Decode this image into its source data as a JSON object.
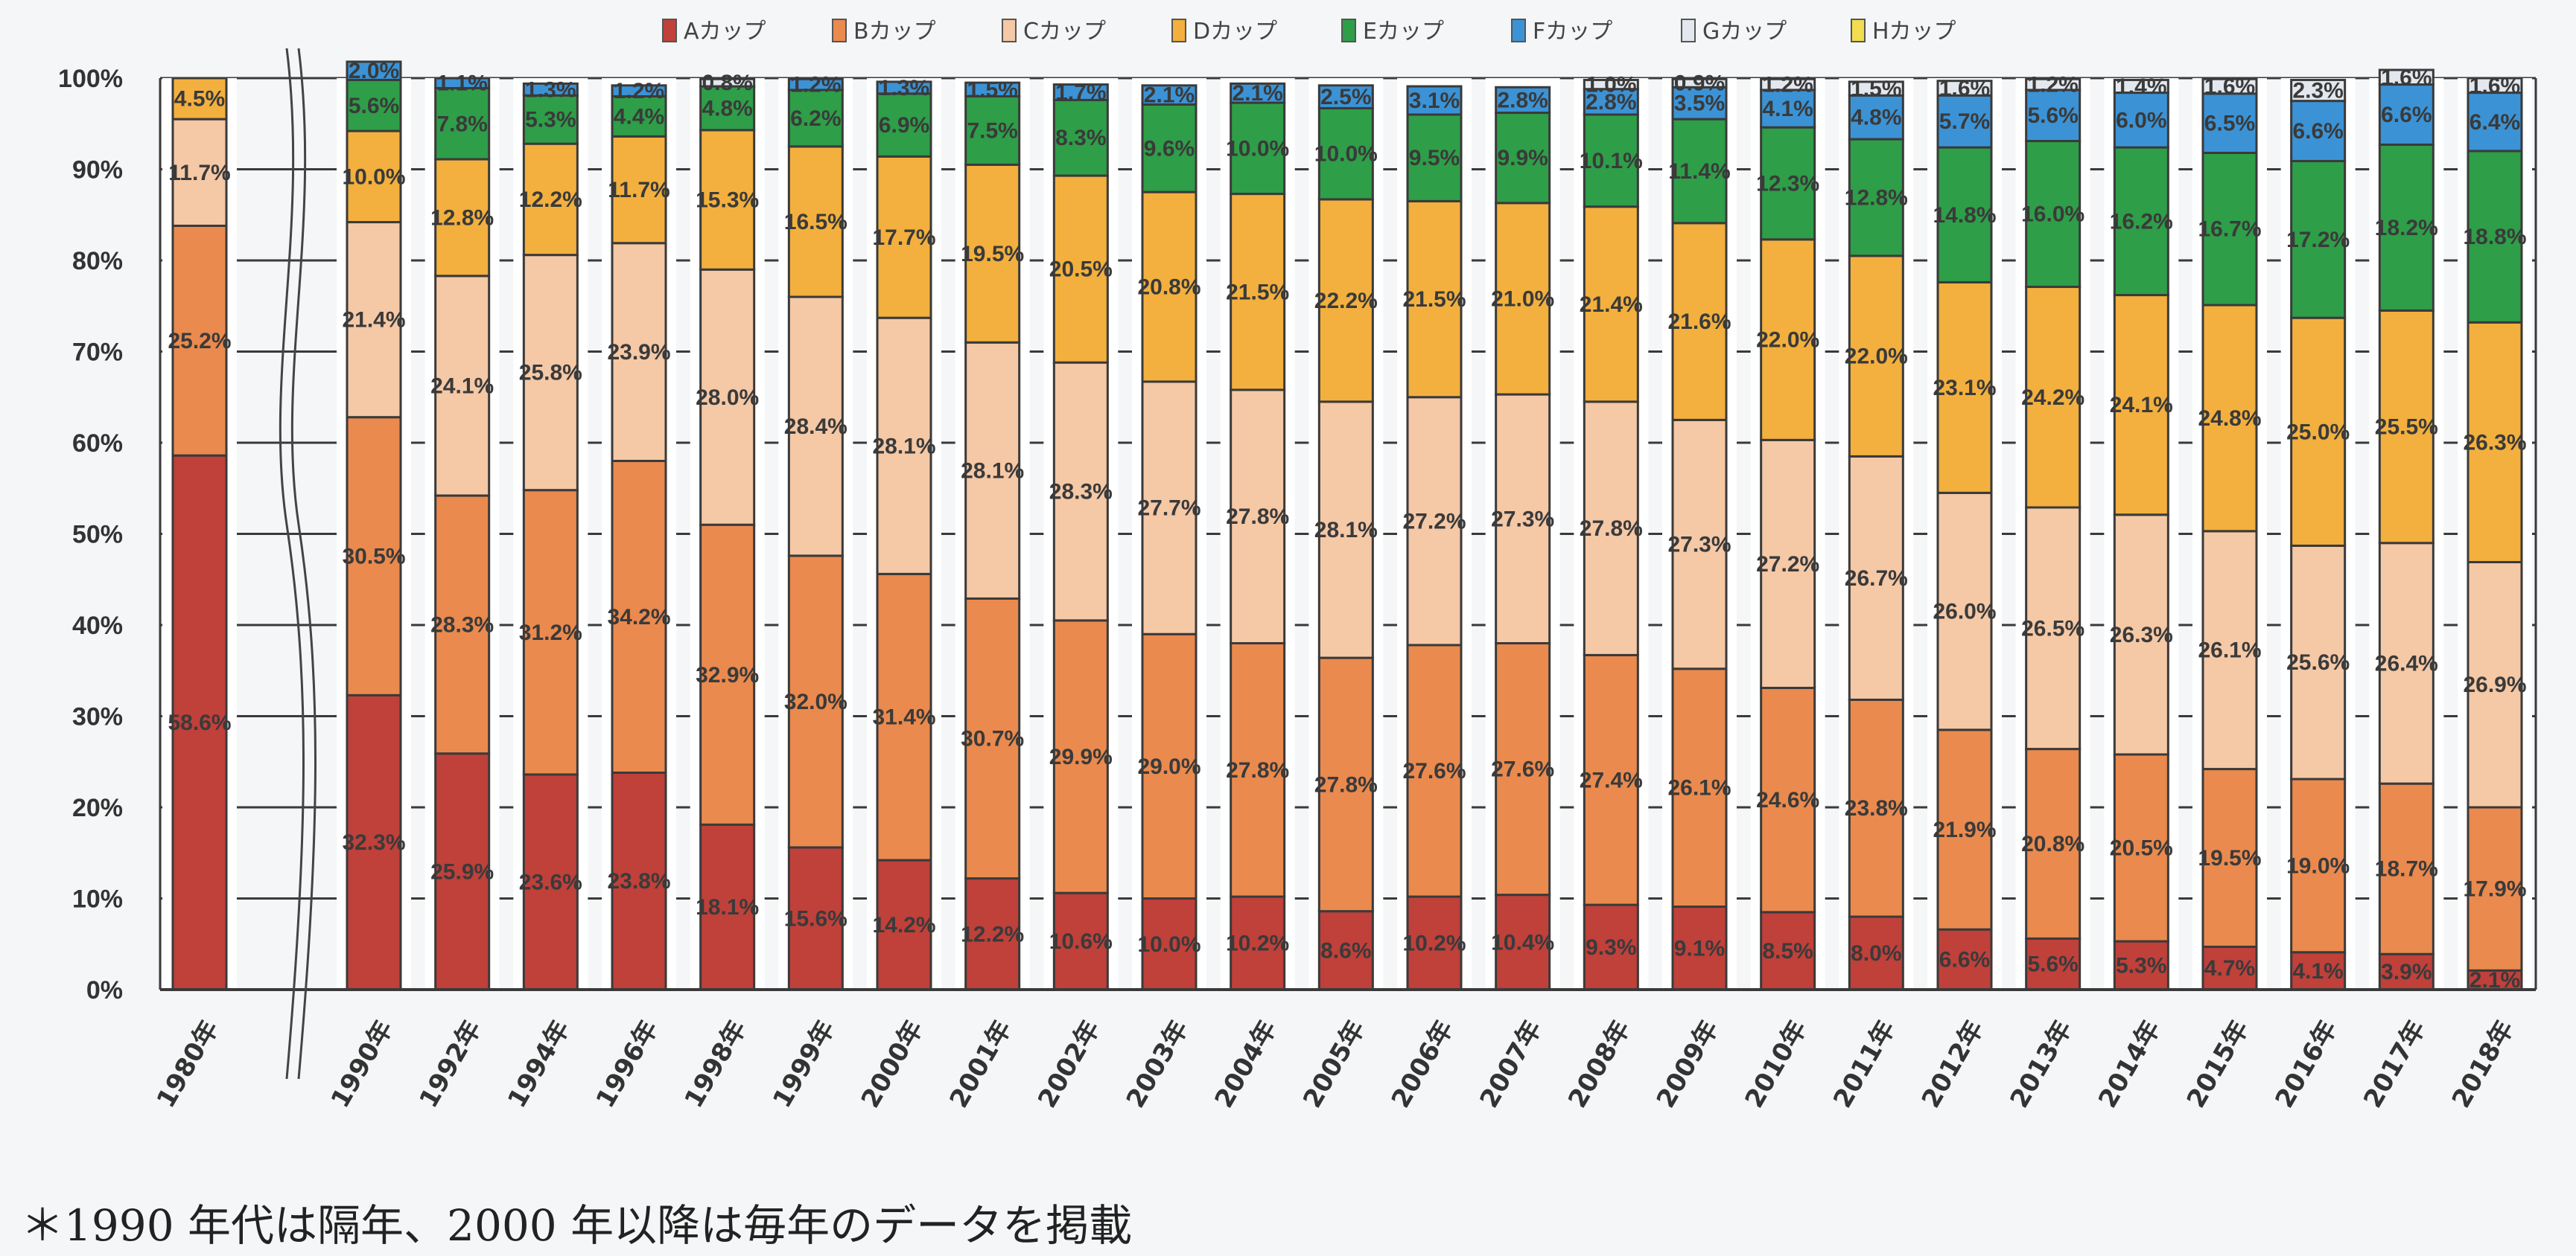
{
  "chart_data": {
    "type": "bar",
    "stacked": true,
    "percent": true,
    "title": "",
    "xlabel": "",
    "ylabel": "",
    "ylim": [
      0,
      100
    ],
    "yticks": [
      "0%",
      "10%",
      "20%",
      "30%",
      "40%",
      "50%",
      "60%",
      "70%",
      "80%",
      "90%",
      "100%"
    ],
    "grid": true,
    "legend_position": "top",
    "axis_break_after": "1980年",
    "categories": [
      "1980年",
      "1990年",
      "1992年",
      "1994年",
      "1996年",
      "1998年",
      "1999年",
      "2000年",
      "2001年",
      "2002年",
      "2003年",
      "2004年",
      "2005年",
      "2006年",
      "2007年",
      "2008年",
      "2009年",
      "2010年",
      "2011年",
      "2012年",
      "2013年",
      "2014年",
      "2015年",
      "2016年",
      "2017年",
      "2018年"
    ],
    "series": [
      {
        "name": "Aカップ",
        "color": "#c0403a",
        "values": [
          58.6,
          32.3,
          25.9,
          23.6,
          23.8,
          18.1,
          15.6,
          14.2,
          12.2,
          10.6,
          10.0,
          10.2,
          8.6,
          10.2,
          10.4,
          9.3,
          9.1,
          8.5,
          8.0,
          6.6,
          5.6,
          5.3,
          4.7,
          4.1,
          3.9,
          2.1
        ]
      },
      {
        "name": "Bカップ",
        "color": "#ea8a4e",
        "values": [
          25.2,
          30.5,
          28.3,
          31.2,
          34.2,
          32.9,
          32.0,
          31.4,
          30.7,
          29.9,
          29.0,
          27.8,
          27.8,
          27.6,
          27.6,
          27.4,
          26.1,
          24.6,
          23.8,
          21.9,
          20.8,
          20.5,
          19.5,
          19.0,
          18.7,
          17.9
        ]
      },
      {
        "name": "Cカップ",
        "color": "#f5c8a6",
        "values": [
          11.7,
          21.4,
          24.1,
          25.8,
          23.9,
          28.0,
          28.4,
          28.1,
          28.1,
          28.3,
          27.7,
          27.8,
          28.1,
          27.2,
          27.3,
          27.8,
          27.3,
          27.2,
          26.7,
          26.0,
          26.5,
          26.3,
          26.1,
          25.6,
          26.4,
          26.9
        ]
      },
      {
        "name": "Dカップ",
        "color": "#f3b03e",
        "values": [
          4.5,
          10.0,
          12.8,
          12.2,
          11.7,
          15.3,
          16.5,
          17.7,
          19.5,
          20.5,
          20.8,
          21.5,
          22.2,
          21.5,
          21.0,
          21.4,
          21.6,
          22.0,
          22.0,
          23.1,
          24.2,
          24.1,
          24.8,
          25.0,
          25.5,
          26.3
        ]
      },
      {
        "name": "Eカップ",
        "color": "#2e9e48",
        "values": [
          0,
          5.6,
          7.8,
          5.3,
          4.4,
          4.8,
          6.2,
          6.9,
          7.5,
          8.3,
          9.6,
          10.0,
          10.0,
          9.5,
          9.9,
          10.1,
          11.4,
          12.3,
          12.8,
          14.8,
          16.0,
          16.2,
          16.7,
          17.2,
          18.2,
          18.8
        ]
      },
      {
        "name": "Fカップ",
        "color": "#3b93d6",
        "values": [
          0,
          2.0,
          1.1,
          1.3,
          1.2,
          0,
          1.2,
          1.3,
          1.5,
          1.7,
          2.1,
          2.1,
          2.5,
          3.1,
          2.8,
          2.8,
          3.5,
          4.1,
          4.8,
          5.7,
          5.6,
          6.0,
          6.5,
          6.6,
          6.6,
          6.4
        ]
      },
      {
        "name": "Gカップ",
        "color": "#e3e8ee",
        "values": [
          0,
          0,
          0,
          0,
          0,
          0.8,
          0,
          0,
          0,
          0,
          0,
          0,
          0,
          0,
          0,
          1.0,
          0.9,
          1.2,
          1.5,
          1.6,
          1.2,
          1.4,
          1.6,
          2.3,
          1.6,
          1.6
        ]
      },
      {
        "name": "Hカップ",
        "color": "#f2dc50",
        "values": [
          0,
          0,
          0,
          0,
          0,
          0,
          0,
          0,
          0,
          0,
          0,
          0,
          0,
          0,
          0,
          0,
          0,
          0,
          0,
          0,
          0,
          0,
          0,
          0,
          0,
          0
        ]
      }
    ],
    "labels": [
      [
        "58.6%",
        "25.2%",
        "11.7%",
        "4.5%",
        "",
        "",
        "",
        ""
      ],
      [
        "32.3%",
        "30.5%",
        "21.4%",
        "10.0%",
        "5.6%",
        "2.0%",
        "",
        ""
      ],
      [
        "25.9%",
        "28.3%",
        "24.1%",
        "12.8%",
        "7.8%",
        "1.1%",
        "",
        ""
      ],
      [
        "23.6%",
        "31.2%",
        "25.8%",
        "12.2%",
        "5.3%",
        "1.3%",
        "",
        ""
      ],
      [
        "23.8%",
        "34.2%",
        "23.9%",
        "11.7%",
        "4.4%",
        "1.2%",
        "",
        ""
      ],
      [
        "18.1%",
        "32.9%",
        "28.0%",
        "15.3%",
        "4.8%",
        "",
        "0.8%",
        ""
      ],
      [
        "15.6%",
        "32.0%",
        "28.4%",
        "16.5%",
        "6.2%",
        "1.2%",
        "",
        ""
      ],
      [
        "14.2%",
        "31.4%",
        "28.1%",
        "17.7%",
        "6.9%",
        "1.3%",
        "",
        ""
      ],
      [
        "12.2%",
        "30.7%",
        "28.1%",
        "19.5%",
        "7.5%",
        "1.5%",
        "",
        ""
      ],
      [
        "10.6%",
        "29.9%",
        "28.3%",
        "20.5%",
        "8.3%",
        "1.7%",
        "",
        ""
      ],
      [
        "10.0%",
        "29.0%",
        "27.7%",
        "20.8%",
        "9.6%",
        "2.1%",
        "",
        ""
      ],
      [
        "10.2%",
        "27.8%",
        "27.8%",
        "21.5%",
        "10.0%",
        "2.1%",
        "",
        ""
      ],
      [
        "8.6%",
        "27.8%",
        "28.1%",
        "22.2%",
        "10.0%",
        "2.5%",
        "",
        ""
      ],
      [
        "10.2%",
        "27.6%",
        "27.2%",
        "21.5%",
        "9.5%",
        "3.1%",
        "",
        ""
      ],
      [
        "10.4%",
        "27.6%",
        "27.3%",
        "21.0%",
        "9.9%",
        "2.8%",
        "",
        ""
      ],
      [
        "9.3%",
        "27.4%",
        "27.8%",
        "21.4%",
        "10.1%",
        "2.8%",
        "1.0%",
        ""
      ],
      [
        "9.1%",
        "26.1%",
        "27.3%",
        "21.6%",
        "11.4%",
        "3.5%",
        "0.9%",
        ""
      ],
      [
        "8.5%",
        "24.6%",
        "27.2%",
        "22.0%",
        "12.3%",
        "4.1%",
        "1.2%",
        ""
      ],
      [
        "8.0%",
        "23.8%",
        "26.7%",
        "22.0%",
        "12.8%",
        "4.8%",
        "1.5%",
        ""
      ],
      [
        "6.6%",
        "21.9%",
        "26.0%",
        "23.1%",
        "14.8%",
        "5.7%",
        "1.6%",
        ""
      ],
      [
        "5.6%",
        "20.8%",
        "26.5%",
        "24.2%",
        "16.0%",
        "5.6%",
        "1.2%",
        ""
      ],
      [
        "5.3%",
        "20.5%",
        "26.3%",
        "24.1%",
        "16.2%",
        "6.0%",
        "1.4%",
        ""
      ],
      [
        "4.7%",
        "19.5%",
        "26.1%",
        "24.8%",
        "16.7%",
        "6.5%",
        "1.6%",
        ""
      ],
      [
        "4.1%",
        "19.0%",
        "25.6%",
        "25.0%",
        "17.2%",
        "6.6%",
        "2.3%",
        ""
      ],
      [
        "3.9%",
        "18.7%",
        "26.4%",
        "25.5%",
        "18.2%",
        "6.6%",
        "1.6%",
        ""
      ],
      [
        "2.1%",
        "17.9%",
        "26.9%",
        "26.3%",
        "18.8%",
        "6.4%",
        "1.6%",
        ""
      ]
    ]
  },
  "footnote": "＊1990 年代は隔年、2000 年以降は毎年のデータを掲載"
}
